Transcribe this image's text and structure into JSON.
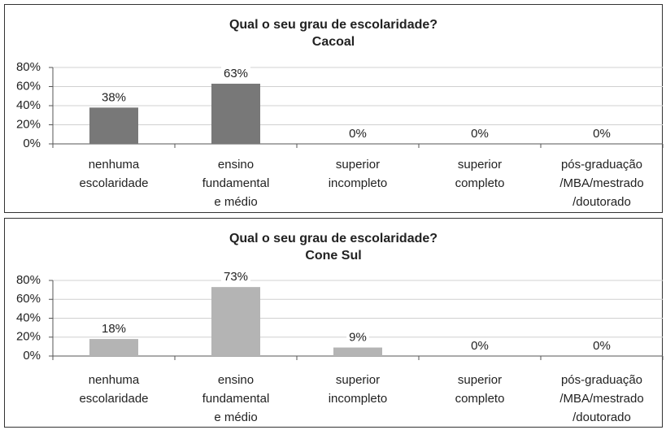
{
  "chart_data": [
    {
      "type": "bar",
      "title": "Qual o seu grau de escolaridade?",
      "subtitle": "Cacoal",
      "categories": [
        [
          "nenhuma",
          "escolaridade"
        ],
        [
          "ensino",
          "fundamental",
          "e médio"
        ],
        [
          "superior",
          "incompleto"
        ],
        [
          "superior",
          "completo"
        ],
        [
          "pós-graduação",
          "/MBA/mestrado",
          "/doutorado"
        ]
      ],
      "values": [
        38,
        63,
        0,
        0,
        0
      ],
      "value_labels": [
        "38%",
        "63%",
        "0%",
        "0%",
        "0%"
      ],
      "color": "#787878",
      "ylim": [
        0,
        80
      ],
      "yticks": [
        {
          "value": 0,
          "label": "0%"
        },
        {
          "value": 20,
          "label": "20%"
        },
        {
          "value": 40,
          "label": "40%"
        },
        {
          "value": 60,
          "label": "60%"
        },
        {
          "value": 80,
          "label": "80%"
        }
      ],
      "grid": true
    },
    {
      "type": "bar",
      "title": "Qual o seu grau de escolaridade?",
      "subtitle": "Cone Sul",
      "categories": [
        [
          "nenhuma",
          "escolaridade"
        ],
        [
          "ensino",
          "fundamental",
          "e médio"
        ],
        [
          "superior",
          "incompleto"
        ],
        [
          "superior",
          "completo"
        ],
        [
          "pós-graduação",
          "/MBA/mestrado",
          "/doutorado"
        ]
      ],
      "values": [
        18,
        73,
        9,
        0,
        0
      ],
      "value_labels": [
        "18%",
        "73%",
        "9%",
        "0%",
        "0%"
      ],
      "color": "#b4b4b4",
      "ylim": [
        0,
        80
      ],
      "yticks": [
        {
          "value": 0,
          "label": "0%"
        },
        {
          "value": 20,
          "label": "20%"
        },
        {
          "value": 40,
          "label": "40%"
        },
        {
          "value": 60,
          "label": "60%"
        },
        {
          "value": 80,
          "label": "80%"
        }
      ],
      "grid": true
    }
  ]
}
